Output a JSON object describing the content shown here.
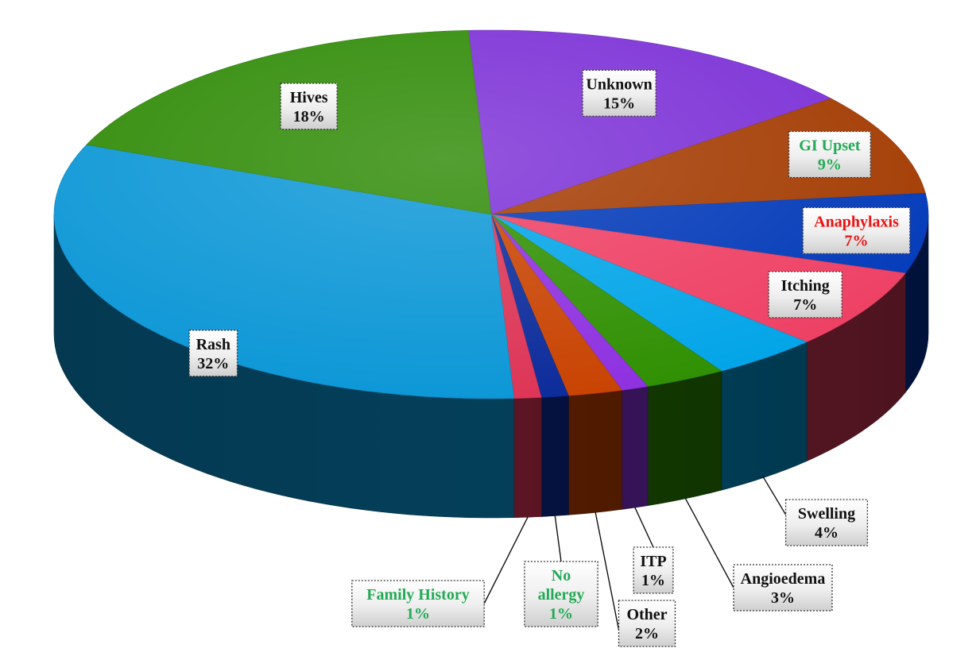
{
  "chart_data": {
    "type": "pie",
    "style": "3d",
    "title": "",
    "legend": "none",
    "unit": "%",
    "slices": [
      {
        "label": "Unknown",
        "value": 15,
        "value_label": "15%",
        "color": "#7b2fd6",
        "label_color": "#111111"
      },
      {
        "label": "GI Upset",
        "value": 9,
        "value_label": "9%",
        "color": "#a33a00",
        "label_color": "#22aa55"
      },
      {
        "label": "Anaphylaxis",
        "value": 7,
        "value_label": "7%",
        "color": "#0038b8",
        "label_color": "#ee1111"
      },
      {
        "label": "Itching",
        "value": 7,
        "value_label": "7%",
        "color": "#ee3e62",
        "label_color": "#111111"
      },
      {
        "label": "Swelling",
        "value": 4,
        "value_label": "4%",
        "color": "#00a4e8",
        "label_color": "#111111"
      },
      {
        "label": "Angioedema",
        "value": 3,
        "value_label": "3%",
        "color": "#2e8f00",
        "label_color": "#111111"
      },
      {
        "label": "ITP",
        "value": 1,
        "value_label": "1%",
        "color": "#8d2fe0",
        "label_color": "#111111"
      },
      {
        "label": "Other",
        "value": 2,
        "value_label": "2%",
        "color": "#c84200",
        "label_color": "#111111"
      },
      {
        "label": "No allergy",
        "value": 1,
        "value_label": "1%",
        "color": "#0a2a9a",
        "label_color": "#22aa55"
      },
      {
        "label": "Family History",
        "value": 1,
        "value_label": "1%",
        "color": "#dd3355",
        "label_color": "#22aa55"
      },
      {
        "label": "Rash",
        "value": 32,
        "value_label": "32%",
        "color": "#0a96d6",
        "label_color": "#111111"
      },
      {
        "label": "Hives",
        "value": 18,
        "value_label": "18%",
        "color": "#2e8a05",
        "label_color": "#111111"
      }
    ]
  }
}
